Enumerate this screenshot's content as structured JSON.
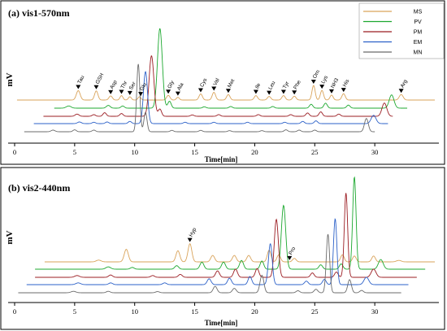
{
  "colors": {
    "MS": "#d9a35a",
    "PV": "#1ca82f",
    "PM": "#9b1c22",
    "EM": "#2b60c8",
    "MN": "#6b6b6b"
  },
  "chart_data": [
    {
      "type": "line",
      "title": "(a) vis1-570nm",
      "xlabel": "Time[min]",
      "ylabel": "mV",
      "xlim": [
        0,
        35
      ],
      "ticks": [
        0,
        5,
        10,
        15,
        20,
        25,
        30
      ],
      "legend": {
        "placement": "top-right",
        "entries": [
          "MS",
          "PV",
          "PM",
          "EM",
          "MN"
        ]
      },
      "peak_labels": [
        {
          "label": "Tau",
          "x": 5.3
        },
        {
          "label": "GSH",
          "x": 6.8
        },
        {
          "label": "Asp",
          "x": 8.0
        },
        {
          "label": "Thr",
          "x": 8.9
        },
        {
          "label": "Ser",
          "x": 9.6
        },
        {
          "label": "Glu",
          "x": 10.5
        },
        {
          "label": "Gly",
          "x": 12.8
        },
        {
          "label": "Ala",
          "x": 13.6
        },
        {
          "label": "Cys",
          "x": 15.5
        },
        {
          "label": "Val",
          "x": 16.6
        },
        {
          "label": "Met",
          "x": 17.8
        },
        {
          "label": "Ile",
          "x": 20.1
        },
        {
          "label": "Leu",
          "x": 21.2
        },
        {
          "label": "Tyr",
          "x": 22.4
        },
        {
          "label": "Phe",
          "x": 23.3
        },
        {
          "label": "Orn",
          "x": 24.9
        },
        {
          "label": "Lys",
          "x": 25.6
        },
        {
          "label": "NH3",
          "x": 26.4
        },
        {
          "label": "His",
          "x": 27.4
        },
        {
          "label": "Arg",
          "x": 32.2
        }
      ],
      "series": [
        {
          "name": "MS",
          "x_range": [
            0.2,
            35
          ],
          "peaks": [
            [
              5.3,
              0.34,
              0.16
            ],
            [
              6.8,
              0.33,
              0.14
            ],
            [
              8.0,
              0.15,
              0.14
            ],
            [
              8.9,
              0.16,
              0.12
            ],
            [
              9.6,
              0.12,
              0.12
            ],
            [
              10.4,
              0.12,
              0.12
            ],
            [
              12.8,
              0.17,
              0.14
            ],
            [
              13.6,
              0.1,
              0.12
            ],
            [
              15.5,
              0.22,
              0.14
            ],
            [
              16.6,
              0.28,
              0.14
            ],
            [
              17.8,
              0.2,
              0.14
            ],
            [
              20.1,
              0.16,
              0.14
            ],
            [
              21.2,
              0.13,
              0.14
            ],
            [
              22.4,
              0.16,
              0.14
            ],
            [
              23.3,
              0.14,
              0.14
            ],
            [
              24.9,
              0.53,
              0.13
            ],
            [
              25.6,
              0.35,
              0.13
            ],
            [
              26.4,
              0.18,
              0.13
            ],
            [
              27.4,
              0.23,
              0.14
            ],
            [
              32.2,
              0.2,
              0.16
            ]
          ]
        },
        {
          "name": "PV",
          "x_range": [
            3.3,
            32.7
          ],
          "peaks": [
            [
              4.5,
              0.08,
              0.2
            ],
            [
              7.8,
              0.1,
              0.16
            ],
            [
              9.0,
              0.08,
              0.14
            ],
            [
              12.1,
              2.88,
              0.2
            ],
            [
              12.9,
              0.25,
              0.14
            ],
            [
              15.8,
              0.05,
              0.14
            ],
            [
              18.0,
              0.06,
              0.14
            ],
            [
              21.5,
              0.06,
              0.14
            ],
            [
              24.7,
              0.14,
              0.14
            ],
            [
              25.9,
              0.18,
              0.14
            ],
            [
              27.8,
              0.11,
              0.14
            ],
            [
              31.4,
              0.48,
              0.2
            ]
          ]
        },
        {
          "name": "PM",
          "x_range": [
            2.4,
            31.5
          ],
          "peaks": [
            [
              5.2,
              0.08,
              0.16
            ],
            [
              6.6,
              0.06,
              0.14
            ],
            [
              7.5,
              0.13,
              0.14
            ],
            [
              8.9,
              0.1,
              0.14
            ],
            [
              11.4,
              2.19,
              0.2
            ],
            [
              12.1,
              0.26,
              0.14
            ],
            [
              14.8,
              0.05,
              0.14
            ],
            [
              17.0,
              0.06,
              0.14
            ],
            [
              20.3,
              0.06,
              0.14
            ],
            [
              23.0,
              0.06,
              0.14
            ],
            [
              24.4,
              0.12,
              0.14
            ],
            [
              25.5,
              0.16,
              0.14
            ],
            [
              27.0,
              0.08,
              0.14
            ],
            [
              30.8,
              0.48,
              0.2
            ]
          ]
        },
        {
          "name": "EM",
          "x_range": [
            1.6,
            31.1
          ],
          "peaks": [
            [
              5.4,
              0.06,
              0.16
            ],
            [
              6.6,
              0.05,
              0.14
            ],
            [
              7.7,
              0.06,
              0.14
            ],
            [
              9.6,
              0.08,
              0.14
            ],
            [
              10.9,
              1.88,
              0.17
            ],
            [
              14.2,
              0.05,
              0.14
            ],
            [
              16.6,
              0.05,
              0.14
            ],
            [
              19.4,
              0.05,
              0.14
            ],
            [
              22.5,
              0.05,
              0.14
            ],
            [
              24.0,
              0.08,
              0.14
            ],
            [
              25.1,
              0.1,
              0.14
            ],
            [
              29.9,
              0.3,
              0.2
            ]
          ]
        },
        {
          "name": "MN",
          "x_range": [
            0.8,
            30.0
          ],
          "peaks": [
            [
              3.2,
              0.06,
              0.16
            ],
            [
              5.0,
              0.07,
              0.14
            ],
            [
              6.6,
              0.06,
              0.14
            ],
            [
              10.3,
              2.45,
              0.13
            ],
            [
              10.9,
              0.7,
              0.13
            ],
            [
              13.1,
              0.05,
              0.14
            ],
            [
              15.5,
              0.05,
              0.14
            ],
            [
              17.9,
              0.04,
              0.14
            ],
            [
              20.6,
              0.04,
              0.14
            ],
            [
              22.6,
              0.07,
              0.14
            ],
            [
              23.7,
              0.06,
              0.14
            ],
            [
              25.0,
              0.06,
              0.14
            ],
            [
              29.3,
              0.48,
              0.16
            ]
          ]
        }
      ]
    },
    {
      "type": "line",
      "title": "(b) vis2-440nm",
      "xlabel": "Time[min]",
      "ylabel": "mV",
      "xlim": [
        0,
        35
      ],
      "ticks": [
        0,
        5,
        10,
        15,
        20,
        25,
        30
      ],
      "peak_labels": [
        {
          "label": "Hyp",
          "x": 14.6
        },
        {
          "label": "Pro",
          "x": 22.9
        }
      ],
      "series": [
        {
          "name": "MS",
          "x_range": [
            2.5,
            35
          ],
          "peaks": [
            [
              7.0,
              0.06,
              0.2
            ],
            [
              9.3,
              0.43,
              0.17
            ],
            [
              13.6,
              0.38,
              0.16
            ],
            [
              14.6,
              0.62,
              0.16
            ],
            [
              16.5,
              0.22,
              0.16
            ],
            [
              18.3,
              0.22,
              0.16
            ],
            [
              19.5,
              0.22,
              0.16
            ],
            [
              21.2,
              0.4,
              0.15
            ],
            [
              22.0,
              0.24,
              0.15
            ],
            [
              23.3,
              0.12,
              0.15
            ],
            [
              27.3,
              0.24,
              0.15
            ],
            [
              28.3,
              0.2,
              0.15
            ],
            [
              29.9,
              0.2,
              0.15
            ],
            [
              32.0,
              0.05,
              0.2
            ]
          ]
        },
        {
          "name": "PV",
          "x_range": [
            1.7,
            34.2
          ],
          "peaks": [
            [
              7.8,
              0.08,
              0.2
            ],
            [
              9.8,
              0.06,
              0.16
            ],
            [
              13.5,
              0.12,
              0.16
            ],
            [
              15.6,
              0.24,
              0.16
            ],
            [
              17.4,
              0.24,
              0.16
            ],
            [
              18.9,
              0.3,
              0.16
            ],
            [
              20.6,
              0.28,
              0.15
            ],
            [
              22.4,
              2.18,
              0.18
            ],
            [
              25.5,
              0.15,
              0.15
            ],
            [
              27.2,
              0.18,
              0.15
            ],
            [
              28.3,
              3.15,
              0.14
            ],
            [
              30.5,
              0.33,
              0.2
            ]
          ]
        },
        {
          "name": "PM",
          "x_range": [
            1.7,
            33.5
          ],
          "peaks": [
            [
              5.2,
              0.06,
              0.2
            ],
            [
              8.0,
              0.08,
              0.16
            ],
            [
              11.5,
              0.06,
              0.16
            ],
            [
              13.8,
              0.1,
              0.16
            ],
            [
              16.9,
              0.22,
              0.16
            ],
            [
              18.4,
              0.28,
              0.16
            ],
            [
              20.2,
              0.3,
              0.15
            ],
            [
              21.8,
              1.98,
              0.17
            ],
            [
              24.8,
              0.15,
              0.15
            ],
            [
              26.8,
              0.18,
              0.15
            ],
            [
              27.6,
              2.88,
              0.14
            ],
            [
              29.9,
              0.28,
              0.2
            ]
          ]
        },
        {
          "name": "EM",
          "x_range": [
            1.0,
            32.8
          ],
          "peaks": [
            [
              5.3,
              0.06,
              0.2
            ],
            [
              8.0,
              0.06,
              0.16
            ],
            [
              12.5,
              0.06,
              0.16
            ],
            [
              16.2,
              0.2,
              0.16
            ],
            [
              17.9,
              0.22,
              0.16
            ],
            [
              19.6,
              0.28,
              0.15
            ],
            [
              21.3,
              1.4,
              0.16
            ],
            [
              24.3,
              0.12,
              0.15
            ],
            [
              25.8,
              0.18,
              0.15
            ],
            [
              26.7,
              2.25,
              0.14
            ],
            [
              29.3,
              0.25,
              0.2
            ]
          ]
        },
        {
          "name": "MN",
          "x_range": [
            0.3,
            32.2
          ],
          "peaks": [
            [
              4.9,
              0.05,
              0.2
            ],
            [
              7.8,
              0.05,
              0.16
            ],
            [
              11.9,
              0.04,
              0.16
            ],
            [
              16.7,
              0.22,
              0.16
            ],
            [
              18.3,
              0.15,
              0.16
            ],
            [
              20.6,
              0.6,
              0.16
            ],
            [
              23.6,
              0.07,
              0.15
            ],
            [
              25.1,
              0.12,
              0.15
            ],
            [
              26.1,
              2.0,
              0.14
            ],
            [
              27.9,
              0.45,
              0.15
            ],
            [
              28.9,
              0.08,
              0.15
            ]
          ]
        }
      ]
    }
  ]
}
